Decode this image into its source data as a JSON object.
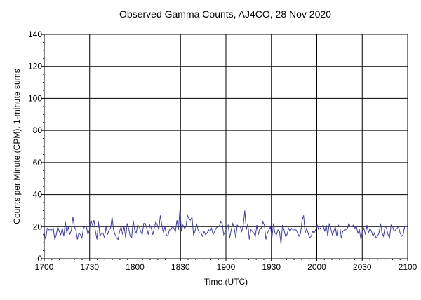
{
  "chart_data": {
    "type": "line",
    "title": "Observed Gamma Counts, AJ4CO, 28 Nov 2020",
    "xlabel": "Time (UTC)",
    "ylabel": "Counts per Minute (CPM), 1-minute sums",
    "x_ticks": [
      "1700",
      "1730",
      "1800",
      "1830",
      "1900",
      "1930",
      "2000",
      "2030",
      "2100"
    ],
    "y_ticks": [
      "0",
      "20",
      "40",
      "60",
      "80",
      "100",
      "120",
      "140"
    ],
    "ylim": [
      0,
      140
    ],
    "x_range_minutes": [
      0,
      240
    ],
    "grid": true,
    "legend": "none",
    "series": [
      {
        "color": "#3f3fa0",
        "values": [
          16,
          12,
          19,
          18,
          18,
          18,
          19,
          12,
          15,
          20,
          17,
          15,
          19,
          14,
          23,
          16,
          20,
          15,
          18,
          26,
          20,
          18,
          12,
          16,
          15,
          13,
          19,
          20,
          20,
          15,
          18,
          24,
          21,
          24,
          17,
          12,
          23,
          14,
          16,
          16,
          13,
          20,
          15,
          18,
          19,
          26,
          18,
          15,
          13,
          12,
          17,
          20,
          15,
          20,
          13,
          22,
          19,
          14,
          13,
          24,
          18,
          16,
          21,
          20,
          17,
          15,
          22,
          22,
          19,
          15,
          21,
          19,
          15,
          19,
          23,
          21,
          18,
          27,
          21,
          16,
          20,
          15,
          14,
          18,
          18,
          20,
          19,
          17,
          24,
          18,
          31,
          17,
          21,
          19,
          20,
          27,
          25,
          24,
          26,
          15,
          17,
          22,
          18,
          16,
          16,
          14,
          17,
          15,
          16,
          18,
          17,
          19,
          15,
          17,
          19,
          20,
          20,
          23,
          22,
          15,
          17,
          19,
          21,
          13,
          18,
          22,
          19,
          13,
          21,
          20,
          20,
          17,
          21,
          30,
          18,
          22,
          12,
          18,
          17,
          16,
          14,
          21,
          15,
          19,
          19,
          23,
          21,
          12,
          16,
          18,
          20,
          13,
          22,
          16,
          15,
          18,
          17,
          9,
          21,
          18,
          14,
          15,
          19,
          17,
          19,
          18,
          18,
          18,
          16,
          14,
          16,
          24,
          27,
          16,
          19,
          16,
          13,
          14,
          17,
          16,
          18,
          21,
          18,
          19,
          20,
          21,
          17,
          21,
          14,
          22,
          19,
          15,
          17,
          20,
          14,
          21,
          20,
          13,
          17,
          18,
          18,
          19,
          22,
          20,
          20,
          21,
          19,
          20,
          16,
          18,
          12,
          17,
          19,
          15,
          21,
          16,
          19,
          17,
          14,
          16,
          13,
          14,
          16,
          22,
          16,
          14,
          20,
          19,
          15,
          13,
          21,
          20,
          17,
          18,
          19,
          20,
          16,
          14,
          15,
          20,
          20,
          20
        ]
      }
    ]
  }
}
